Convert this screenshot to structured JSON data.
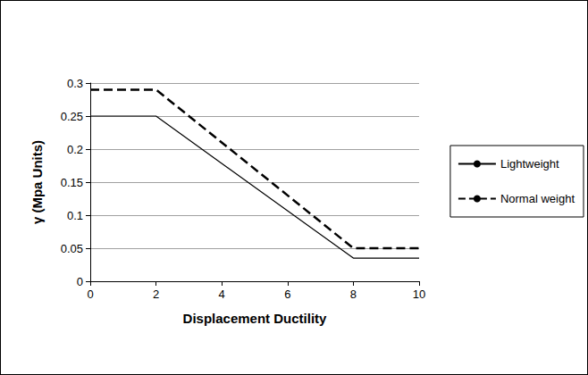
{
  "chart_data": {
    "type": "line",
    "x_label": "Displacement Ductility",
    "y_label": "γ (Mpa Units)",
    "x": [
      0,
      2,
      8,
      10
    ],
    "series": [
      {
        "name": "Lightweight",
        "color": "#000000",
        "line_style": "solid",
        "values": [
          0.25,
          0.25,
          0.035,
          0.035
        ]
      },
      {
        "name": "Normal weight",
        "color": "#000000",
        "line_style": "dashed",
        "values": [
          0.29,
          0.29,
          0.05,
          0.05
        ]
      }
    ],
    "xlim": [
      0,
      10
    ],
    "xticks": [
      0,
      2,
      4,
      6,
      8,
      10
    ],
    "ylim": [
      0,
      0.3
    ],
    "yticks": [
      0,
      0.05,
      0.1,
      0.15,
      0.2,
      0.25,
      0.3
    ],
    "grid": true,
    "legend": "right"
  }
}
